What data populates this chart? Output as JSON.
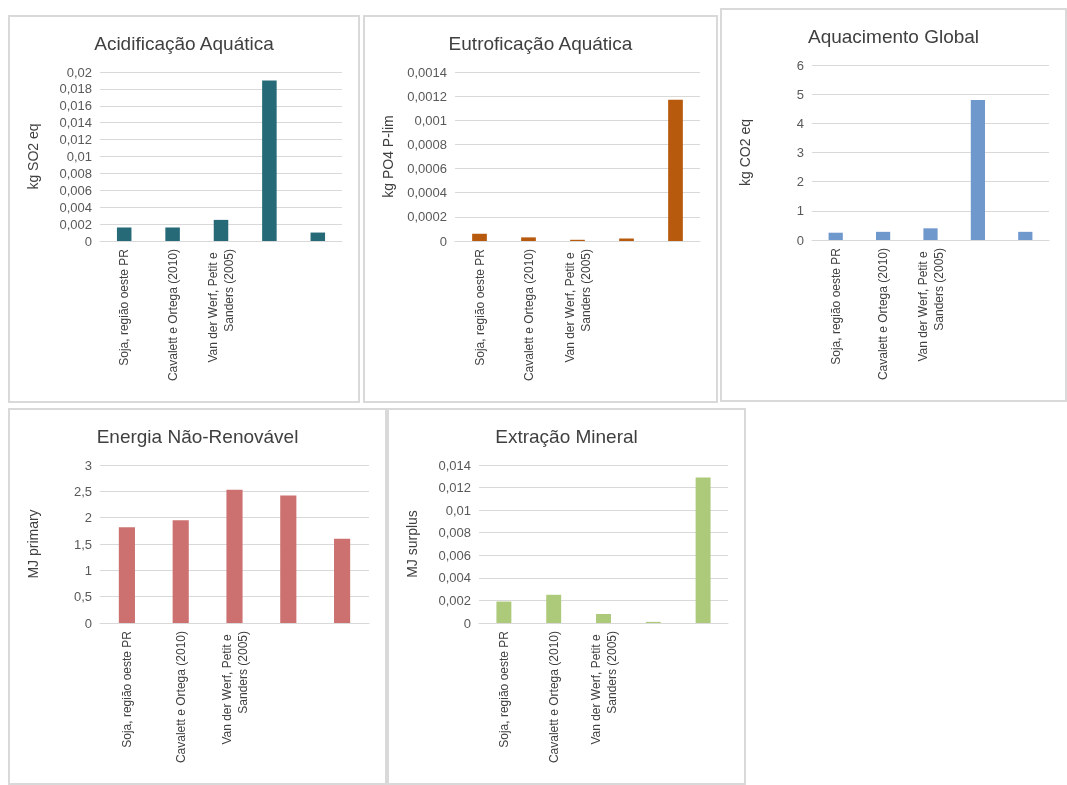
{
  "chart_data": [
    {
      "type": "bar",
      "title": "Acidificação Aquática",
      "ylabel": "kg SO2 eq",
      "categories": [
        "Soja, região oeste PR",
        "Cavalett e Ortega (2010)",
        "Van der Werf, Petit e Sanders (2005)",
        null,
        null
      ],
      "values": [
        0.0016,
        0.0016,
        0.0025,
        0.019,
        0.001
      ],
      "color": "#266a78",
      "ylim": [
        0,
        0.02
      ],
      "yticks": [
        0,
        {
          "value": 0.002,
          "label": "0,002"
        },
        {
          "value": 0.004,
          "label": "0,004"
        },
        {
          "value": 0.006,
          "label": "0,006"
        },
        {
          "value": 0.008,
          "label": "0,008"
        },
        {
          "value": 0.01,
          "label": "0,01"
        },
        {
          "value": 0.012,
          "label": "0,012"
        },
        {
          "value": 0.014,
          "label": "0,014"
        },
        {
          "value": 0.016,
          "label": "0,016"
        },
        {
          "value": 0.018,
          "label": "0,018"
        },
        {
          "value": 0.02,
          "label": "0,02"
        }
      ],
      "grid": "y"
    },
    {
      "type": "bar",
      "title": "Eutroficação Aquática",
      "ylabel": "kg PO4 P-lim",
      "categories": [
        "Soja, região oeste PR",
        "Cavalett e Ortega (2010)",
        "Van der Werf, Petit e Sanders (2005)",
        null,
        null
      ],
      "values": [
        6e-05,
        3e-05,
        1e-05,
        2e-05,
        0.00117
      ],
      "color": "#b85a0d",
      "ylim": [
        0,
        0.0014
      ],
      "yticks": [
        0,
        {
          "value": 0.0002,
          "label": "0,0002"
        },
        {
          "value": 0.0004,
          "label": "0,0004"
        },
        {
          "value": 0.0006,
          "label": "0,0006"
        },
        {
          "value": 0.0008,
          "label": "0,0008"
        },
        {
          "value": 0.001,
          "label": "0,001"
        },
        {
          "value": 0.0012,
          "label": "0,0012"
        },
        {
          "value": 0.0014,
          "label": "0,0014"
        }
      ],
      "grid": "y"
    },
    {
      "type": "bar",
      "title": "Aquacimento Global",
      "ylabel": "kg CO2 eq",
      "categories": [
        "Soja, região oeste PR",
        "Cavalett e Ortega (2010)",
        "Van der Werf, Petit e Sanders (2005)",
        null,
        null
      ],
      "values": [
        0.25,
        0.28,
        0.4,
        4.8,
        0.28
      ],
      "color": "#6f98cc",
      "ylim": [
        0,
        6
      ],
      "yticks": [
        0,
        1,
        2,
        3,
        4,
        5,
        6
      ],
      "grid": "y"
    },
    {
      "type": "bar",
      "title": "Energia Não-Renovável",
      "ylabel": "MJ primary",
      "categories": [
        "Soja, região oeste PR",
        "Cavalett e Ortega (2010)",
        "Van der Werf, Petit e Sanders (2005)",
        null,
        null
      ],
      "values": [
        1.82,
        1.95,
        2.53,
        2.42,
        1.6
      ],
      "color": "#cc7170",
      "ylim": [
        0,
        3
      ],
      "yticks": [
        0,
        {
          "value": 0.5,
          "label": "0,5"
        },
        1,
        {
          "value": 1.5,
          "label": "1,5"
        },
        2,
        {
          "value": 2.5,
          "label": "2,5"
        },
        3
      ],
      "grid": "y"
    },
    {
      "type": "bar",
      "title": "Extração Mineral",
      "ylabel": "MJ surplus",
      "categories": [
        "Soja, região oeste PR",
        "Cavalett e Ortega (2010)",
        "Van der Werf, Petit e Sanders (2005)",
        null,
        null
      ],
      "values": [
        0.0019,
        0.0025,
        0.0008,
        0.0001,
        0.0129
      ],
      "color": "#adc97a",
      "ylim": [
        0,
        0.014
      ],
      "yticks": [
        0,
        {
          "value": 0.002,
          "label": "0,002"
        },
        {
          "value": 0.004,
          "label": "0,004"
        },
        {
          "value": 0.006,
          "label": "0,006"
        },
        {
          "value": 0.008,
          "label": "0,008"
        },
        {
          "value": 0.01,
          "label": "0,01"
        },
        {
          "value": 0.012,
          "label": "0,012"
        },
        {
          "value": 0.014,
          "label": "0,014"
        }
      ],
      "grid": "y"
    }
  ]
}
